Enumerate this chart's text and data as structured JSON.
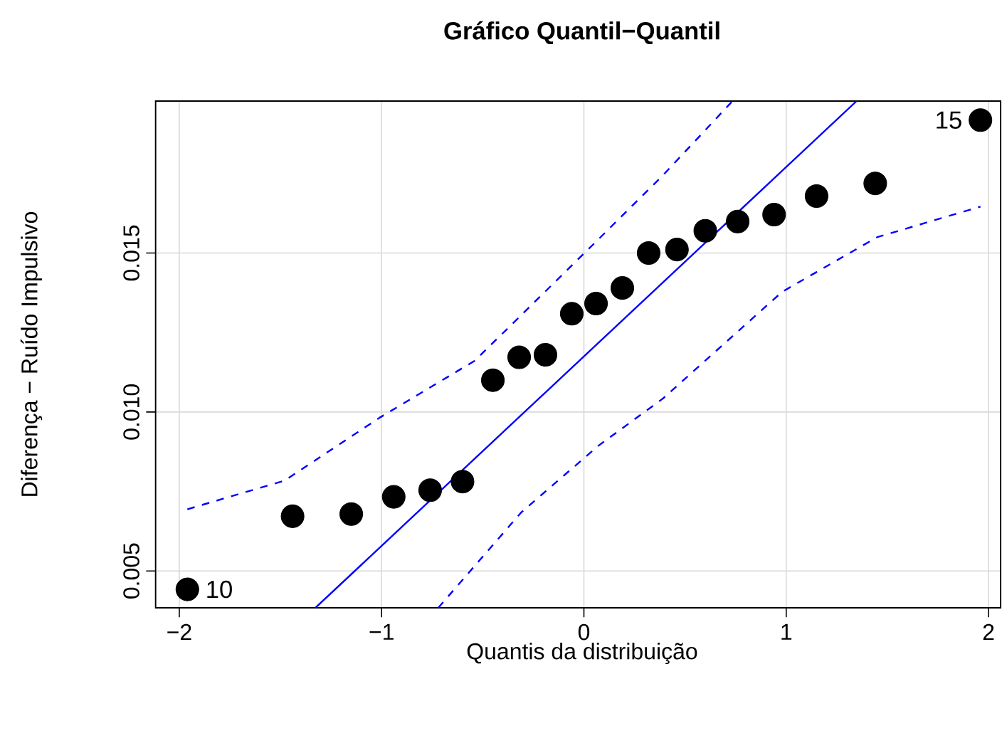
{
  "chart_data": {
    "type": "scatter",
    "title": "Gráfico Quantil−Quantil",
    "xlabel": "Quantis da distribuição",
    "ylabel": "Diferença − Ruído Impulsivo",
    "xlim": [
      -2.117,
      2.06
    ],
    "ylim": [
      0.00384,
      0.01978
    ],
    "xticks": [
      {
        "value": -2,
        "label": "−2"
      },
      {
        "value": -1,
        "label": "−1"
      },
      0,
      1,
      2
    ],
    "yticks": [
      0.005,
      {
        "value": 0.01,
        "label": "0.010"
      },
      0.015
    ],
    "grid": true,
    "series": [
      {
        "type": "scatter",
        "color": "#000000",
        "marker": "circle",
        "x": [
          -1.96,
          -1.44,
          -1.15,
          -0.94,
          -0.76,
          -0.6,
          -0.45,
          -0.32,
          -0.19,
          -0.06,
          0.06,
          0.19,
          0.32,
          0.46,
          0.6,
          0.76,
          0.94,
          1.15,
          1.44,
          1.96
        ],
        "values": [
          0.00442,
          0.00672,
          0.00679,
          0.00733,
          0.00754,
          0.00781,
          0.011,
          0.01172,
          0.0118,
          0.01309,
          0.01341,
          0.0139,
          0.015,
          0.01511,
          0.0157,
          0.01599,
          0.01621,
          0.01679,
          0.01719,
          0.01918
        ]
      },
      {
        "type": "line",
        "color": "#0000ff",
        "line_style": "solid",
        "x": [
          -1.327,
          1.348
        ],
        "values": [
          0.00384,
          0.01978
        ]
      },
      {
        "type": "line",
        "color": "#0000ff",
        "line_style": "dashed",
        "x": [
          -1.96,
          -1.48,
          -1.01,
          -0.54,
          0.07,
          0.39,
          0.73
        ],
        "values": [
          0.00694,
          0.00784,
          0.00982,
          0.01161,
          0.01542,
          0.01744,
          0.01975
        ]
      },
      {
        "type": "line",
        "color": "#0000ff",
        "line_style": "dashed",
        "x": [
          -0.72,
          -0.31,
          0.07,
          0.39,
          0.98,
          1.45,
          1.96
        ],
        "values": [
          0.00384,
          0.00684,
          0.00893,
          0.01042,
          0.01378,
          0.0155,
          0.01646
        ]
      }
    ],
    "annotations": [
      {
        "text": "10",
        "x": -1.96,
        "y": 0.00442
      },
      {
        "text": "15",
        "x": 1.96,
        "y": 0.01918
      }
    ]
  }
}
